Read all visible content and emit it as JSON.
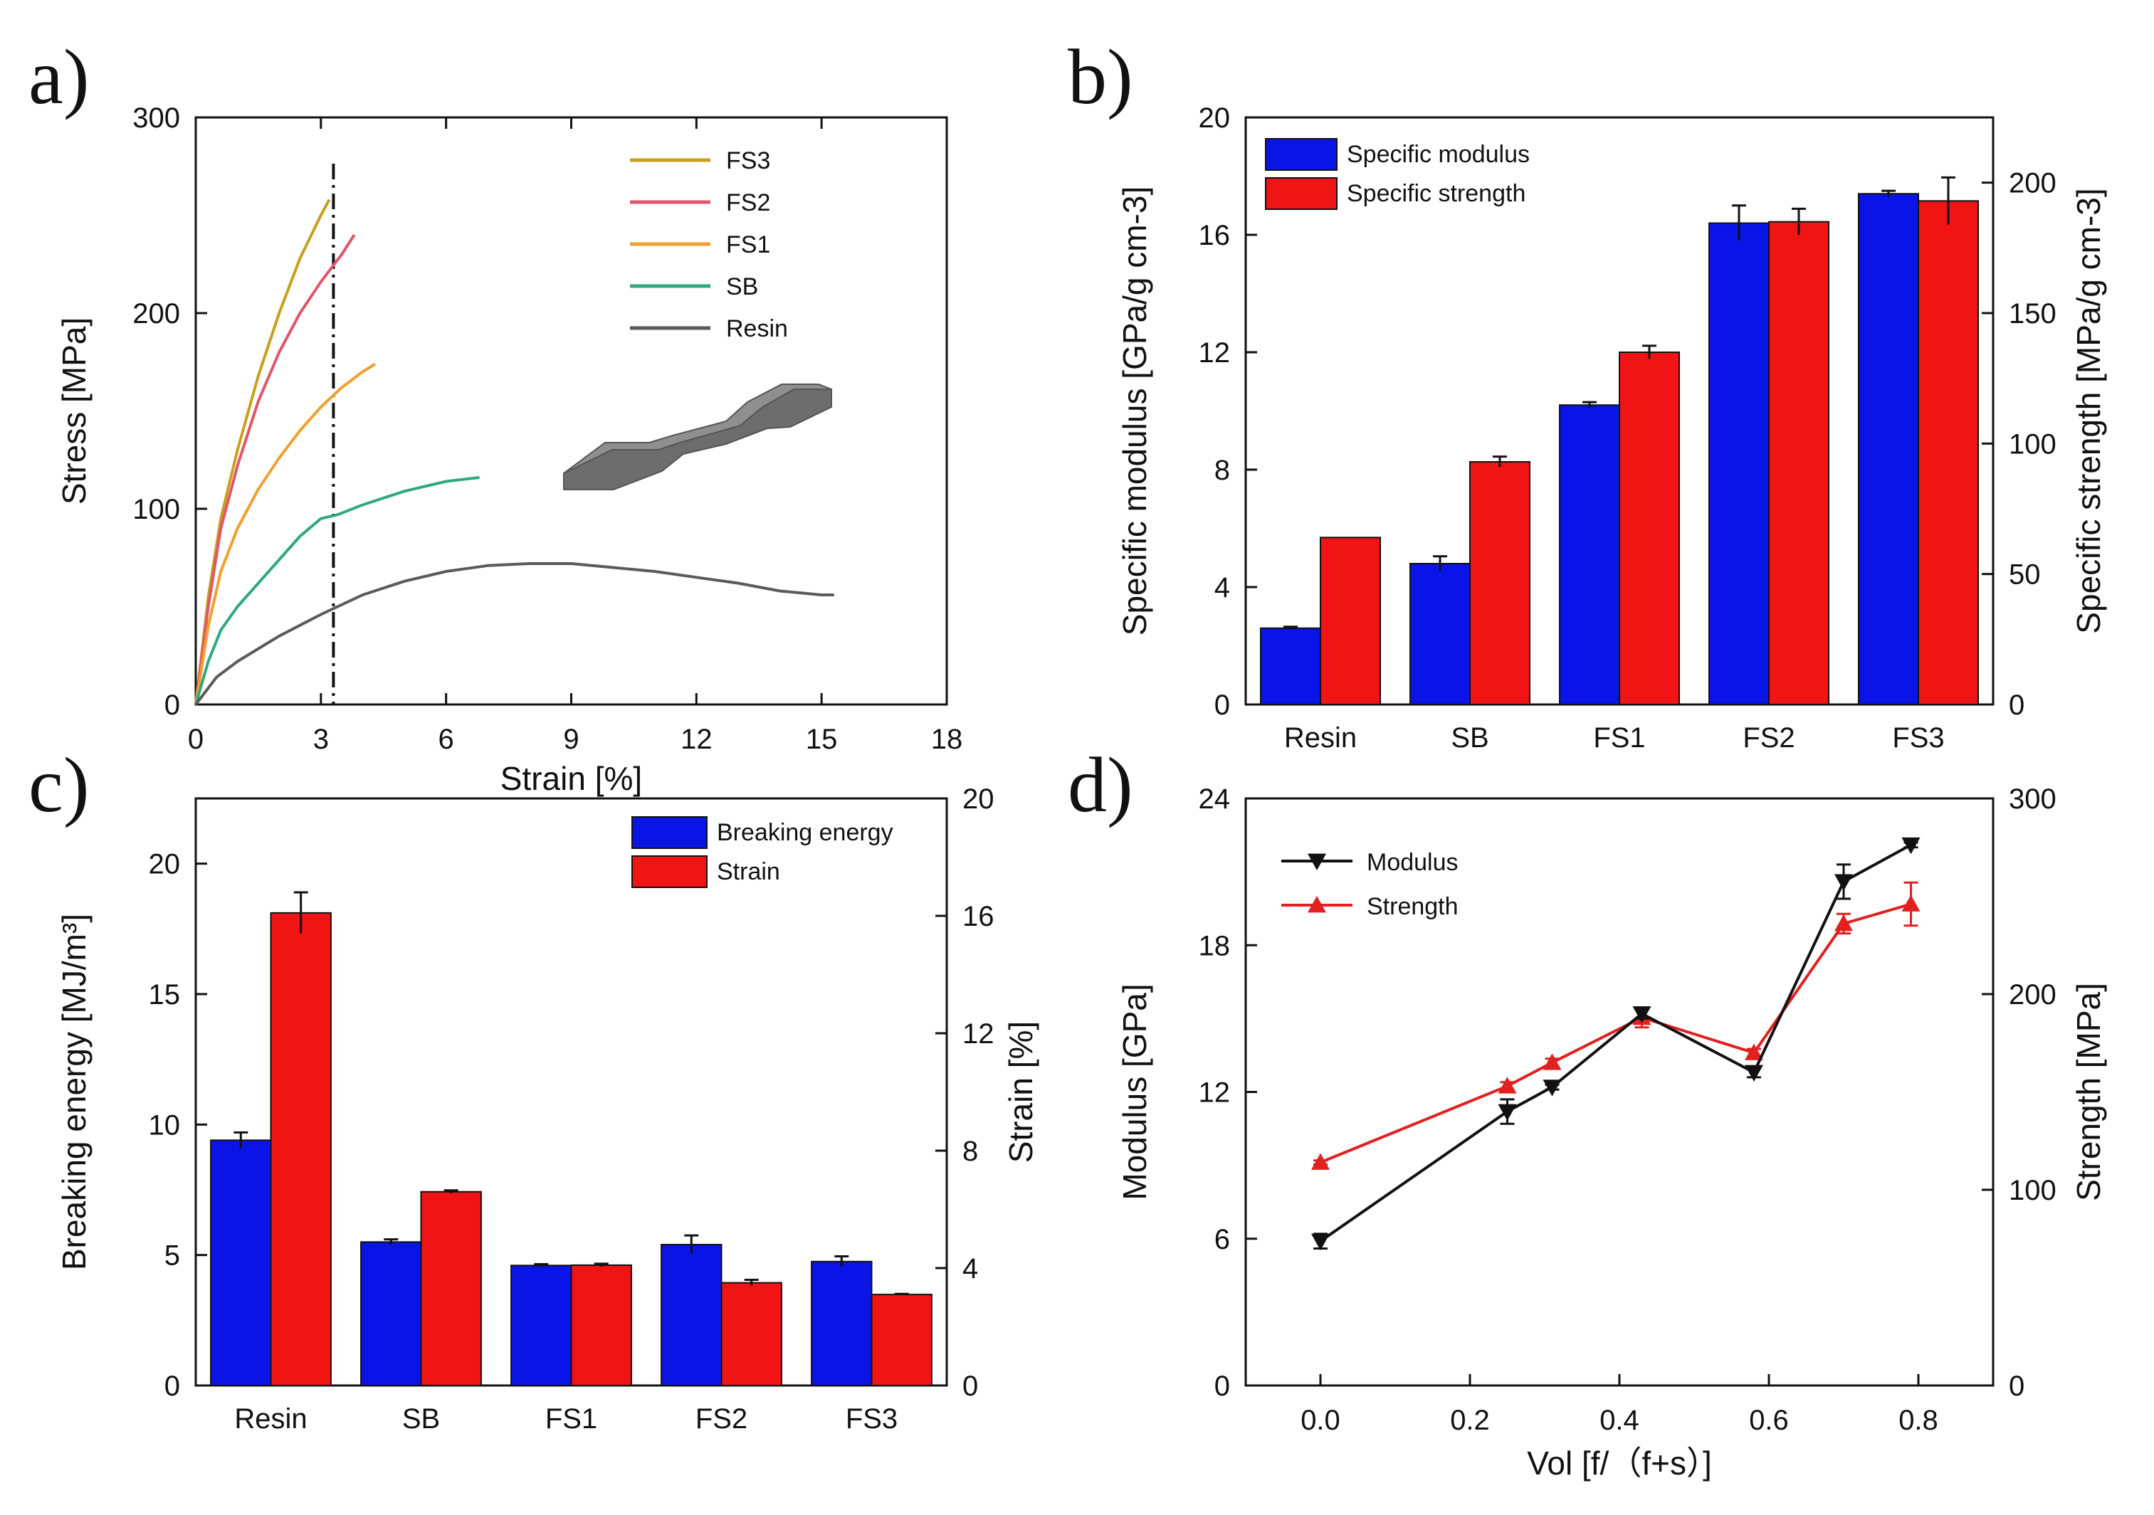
{
  "chart_data": [
    {
      "panel": "a)",
      "type": "line",
      "xlabel": "Strain [%]",
      "ylabel": "Stress [MPa]",
      "xlim": [
        0,
        18
      ],
      "ylim": [
        0,
        300
      ],
      "xticks": [
        0,
        3,
        6,
        9,
        12,
        15,
        18
      ],
      "yticks": [
        0,
        100,
        200,
        300
      ],
      "grid": false,
      "legend_position": "top-right",
      "annotations": [
        "vertical dash-dot line at strain 3.3",
        "dog-bone specimen illustration"
      ],
      "marker_line_x": 3.3,
      "series": [
        {
          "name": "FS3",
          "color": "#c8a01e",
          "x": [
            0,
            0.3,
            0.6,
            1.0,
            1.5,
            2.0,
            2.5,
            3.0,
            3.2
          ],
          "y": [
            0,
            55,
            95,
            130,
            168,
            200,
            228,
            250,
            258
          ]
        },
        {
          "name": "FS2",
          "color": "#e0566a",
          "x": [
            0,
            0.3,
            0.6,
            1.0,
            1.5,
            2.0,
            2.5,
            3.0,
            3.5,
            3.8
          ],
          "y": [
            0,
            50,
            90,
            122,
            155,
            180,
            200,
            216,
            230,
            240
          ]
        },
        {
          "name": "FS1",
          "color": "#f0a030",
          "x": [
            0,
            0.3,
            0.6,
            1.0,
            1.5,
            2.0,
            2.5,
            3.0,
            3.5,
            4.0,
            4.3
          ],
          "y": [
            0,
            40,
            68,
            90,
            110,
            126,
            140,
            152,
            162,
            170,
            174
          ]
        },
        {
          "name": "SB",
          "color": "#2fa880",
          "x": [
            0,
            0.3,
            0.6,
            1.0,
            1.5,
            2.0,
            2.5,
            3.0,
            3.4,
            4.0,
            5.0,
            6.0,
            6.8
          ],
          "y": [
            0,
            22,
            38,
            50,
            62,
            74,
            86,
            95,
            97,
            102,
            109,
            114,
            116
          ]
        },
        {
          "name": "Resin",
          "color": "#5a5a5a",
          "x": [
            0,
            0.5,
            1.0,
            2.0,
            3.0,
            4.0,
            5.0,
            6.0,
            7.0,
            8.0,
            9.0,
            10.0,
            11.0,
            12.0,
            13.0,
            14.0,
            15.0,
            15.3
          ],
          "y": [
            0,
            14,
            22,
            35,
            46,
            56,
            63,
            68,
            71,
            72,
            72,
            70,
            68,
            65,
            62,
            58,
            56,
            56
          ]
        }
      ]
    },
    {
      "panel": "b)",
      "type": "bar",
      "categories": [
        "Resin",
        "SB",
        "FS1",
        "FS2",
        "FS3"
      ],
      "ylabel": "Specific modulus [GPa/g cm-3]",
      "y2label": "Specific strength [MPa/g cm-3]",
      "ylim": [
        0,
        20
      ],
      "y2lim": [
        0,
        225
      ],
      "yticks": [
        0,
        4,
        8,
        12,
        16,
        20
      ],
      "y2ticks": [
        0,
        50,
        100,
        150,
        200
      ],
      "legend_position": "top-left",
      "series": [
        {
          "name": "Specific modulus",
          "color": "#0a14e6",
          "axis": "left",
          "values": [
            2.6,
            4.8,
            10.2,
            16.4,
            17.4
          ],
          "errors": [
            0.05,
            0.25,
            0.1,
            0.6,
            0.1
          ]
        },
        {
          "name": "Specific strength",
          "color": "#f01414",
          "axis": "right",
          "values": [
            64,
            93,
            135,
            185,
            193
          ],
          "errors": [
            0,
            2,
            2.5,
            5,
            9
          ]
        }
      ]
    },
    {
      "panel": "c)",
      "type": "bar",
      "categories": [
        "Resin",
        "SB",
        "FS1",
        "FS2",
        "FS3"
      ],
      "ylabel": "Breaking energy [MJ/m³]",
      "y2label": "Strain [%]",
      "ylim": [
        0,
        22.5
      ],
      "y2lim": [
        0,
        20
      ],
      "yticks": [
        0,
        5,
        10,
        15,
        20
      ],
      "y2ticks": [
        0,
        4,
        8,
        12,
        16,
        20
      ],
      "legend_position": "top-right",
      "series": [
        {
          "name": "Breaking energy",
          "color": "#0a14e6",
          "axis": "left",
          "values": [
            9.4,
            5.5,
            4.6,
            5.4,
            4.75
          ],
          "errors": [
            0.3,
            0.1,
            0.05,
            0.35,
            0.2
          ]
        },
        {
          "name": "Strain",
          "color": "#f01414",
          "axis": "right",
          "values": [
            16.1,
            6.6,
            4.1,
            3.5,
            3.1
          ],
          "errors": [
            0.7,
            0.05,
            0.05,
            0.1,
            0.02
          ]
        }
      ]
    },
    {
      "panel": "d)",
      "type": "line",
      "xlabel": "Vol [f/（f+s）]",
      "ylabel": "Modulus [GPa]",
      "y2label": "Strength [MPa]",
      "xlim": [
        -0.1,
        0.9
      ],
      "ylim": [
        0,
        24
      ],
      "y2lim": [
        0,
        300
      ],
      "xticks": [
        0.0,
        0.2,
        0.4,
        0.6,
        0.8
      ],
      "yticks": [
        0,
        6,
        12,
        18,
        24
      ],
      "y2ticks": [
        0,
        100,
        200,
        300
      ],
      "legend_position": "top-left",
      "series": [
        {
          "name": "Modulus",
          "color": "#111111",
          "marker": "triangle-down",
          "axis": "left",
          "x": [
            0.0,
            0.25,
            0.31,
            0.43,
            0.58,
            0.7,
            0.79
          ],
          "y": [
            5.9,
            11.2,
            12.2,
            15.2,
            12.8,
            20.6,
            22.1
          ],
          "errors": [
            0.3,
            0.5,
            0.1,
            0.2,
            0.2,
            0.7,
            0.1
          ]
        },
        {
          "name": "Strength",
          "color": "#e22020",
          "marker": "triangle-up",
          "axis": "right",
          "x": [
            0.0,
            0.25,
            0.31,
            0.43,
            0.58,
            0.7,
            0.79
          ],
          "y": [
            114,
            153,
            165,
            188,
            170,
            236,
            246
          ],
          "errors": [
            1,
            2,
            2,
            5,
            2,
            5,
            11
          ]
        }
      ]
    }
  ]
}
